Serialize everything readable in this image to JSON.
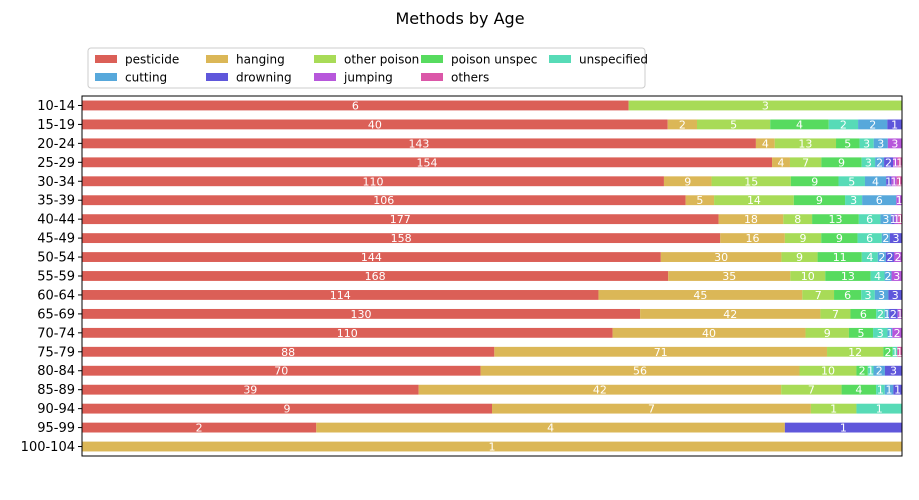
{
  "chart_data": {
    "type": "bar",
    "orientation": "horizontal",
    "stacked": "normalized",
    "title": "Methods by Age",
    "xlabel": "",
    "ylabel": "",
    "legend_position": "top-left",
    "legend_columns": 5,
    "grid": false,
    "categories": [
      "10-14",
      "15-19",
      "20-24",
      "25-29",
      "30-34",
      "35-39",
      "40-44",
      "45-49",
      "50-54",
      "55-59",
      "60-64",
      "65-69",
      "70-74",
      "75-79",
      "80-84",
      "85-89",
      "90-94",
      "95-99",
      "100-104"
    ],
    "series": [
      {
        "name": "pesticide",
        "color": "#db5f57",
        "values": [
          6,
          40,
          143,
          154,
          110,
          106,
          177,
          158,
          144,
          168,
          114,
          130,
          110,
          88,
          70,
          39,
          9,
          2,
          0
        ]
      },
      {
        "name": "hanging",
        "color": "#dbb757",
        "values": [
          0,
          2,
          4,
          4,
          9,
          5,
          18,
          16,
          30,
          35,
          45,
          42,
          40,
          71,
          56,
          42,
          7,
          4,
          1
        ]
      },
      {
        "name": "other poison",
        "color": "#a8db57",
        "values": [
          3,
          5,
          13,
          7,
          15,
          14,
          8,
          9,
          9,
          10,
          7,
          7,
          9,
          12,
          10,
          7,
          1,
          0,
          0
        ]
      },
      {
        "name": "poison unspec",
        "color": "#57db5f",
        "values": [
          0,
          4,
          5,
          9,
          9,
          9,
          13,
          9,
          11,
          13,
          6,
          6,
          5,
          2,
          2,
          4,
          0,
          0,
          0
        ]
      },
      {
        "name": "unspecified",
        "color": "#57dbb7",
        "values": [
          0,
          2,
          3,
          3,
          5,
          3,
          6,
          6,
          4,
          4,
          3,
          2,
          3,
          1,
          1,
          1,
          1,
          0,
          0
        ]
      },
      {
        "name": "cutting",
        "color": "#57a8db",
        "values": [
          0,
          2,
          3,
          2,
          4,
          6,
          3,
          2,
          2,
          2,
          3,
          1,
          1,
          0,
          2,
          1,
          0,
          0,
          0
        ]
      },
      {
        "name": "drowning",
        "color": "#5f57db",
        "values": [
          0,
          1,
          0,
          2,
          1,
          0,
          1,
          3,
          2,
          0,
          3,
          2,
          0,
          0,
          3,
          1,
          0,
          1,
          0
        ]
      },
      {
        "name": "jumping",
        "color": "#b757db",
        "values": [
          0,
          0,
          3,
          1,
          1,
          1,
          1,
          0,
          2,
          3,
          0,
          1,
          2,
          0,
          0,
          0,
          0,
          0,
          0
        ]
      },
      {
        "name": "others",
        "color": "#db57a8",
        "values": [
          0,
          0,
          0,
          1,
          1,
          0,
          1,
          0,
          0,
          0,
          0,
          0,
          0,
          1,
          0,
          0,
          0,
          0,
          0
        ]
      }
    ]
  }
}
